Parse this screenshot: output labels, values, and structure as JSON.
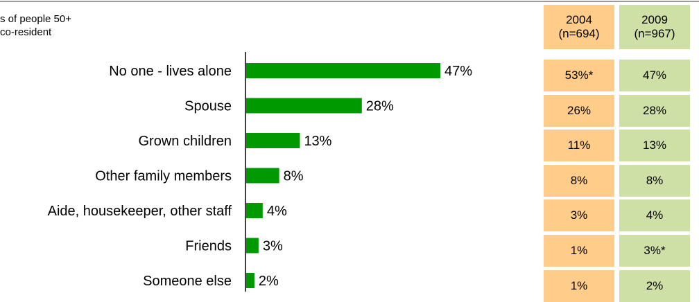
{
  "subtitle_lines": [
    "s of people 50+",
    "co-resident"
  ],
  "chart_data": {
    "type": "bar",
    "orientation": "horizontal",
    "categories": [
      "No one - lives alone",
      "Spouse",
      "Grown children",
      "Other family members",
      "Aide, housekeeper, other staff",
      "Friends",
      "Someone else"
    ],
    "values": [
      47,
      28,
      13,
      8,
      4,
      3,
      2
    ],
    "value_labels": [
      "47%",
      "28%",
      "13%",
      "8%",
      "4%",
      "3%",
      "2%"
    ],
    "bar_color": "#009900",
    "xlim": [
      0,
      100
    ]
  },
  "table": {
    "columns": [
      {
        "year": "2004",
        "n": "(n=694)",
        "color": "#ffcc8a",
        "values": [
          "53%*",
          "26%",
          "11%",
          "8%",
          "3%",
          "1%",
          "1%"
        ]
      },
      {
        "year": "2009",
        "n": "(n=967)",
        "color": "#cfe0a6",
        "values": [
          "47%",
          "28%",
          "13%",
          "8%",
          "4%",
          "3%*",
          "2%"
        ]
      }
    ]
  }
}
